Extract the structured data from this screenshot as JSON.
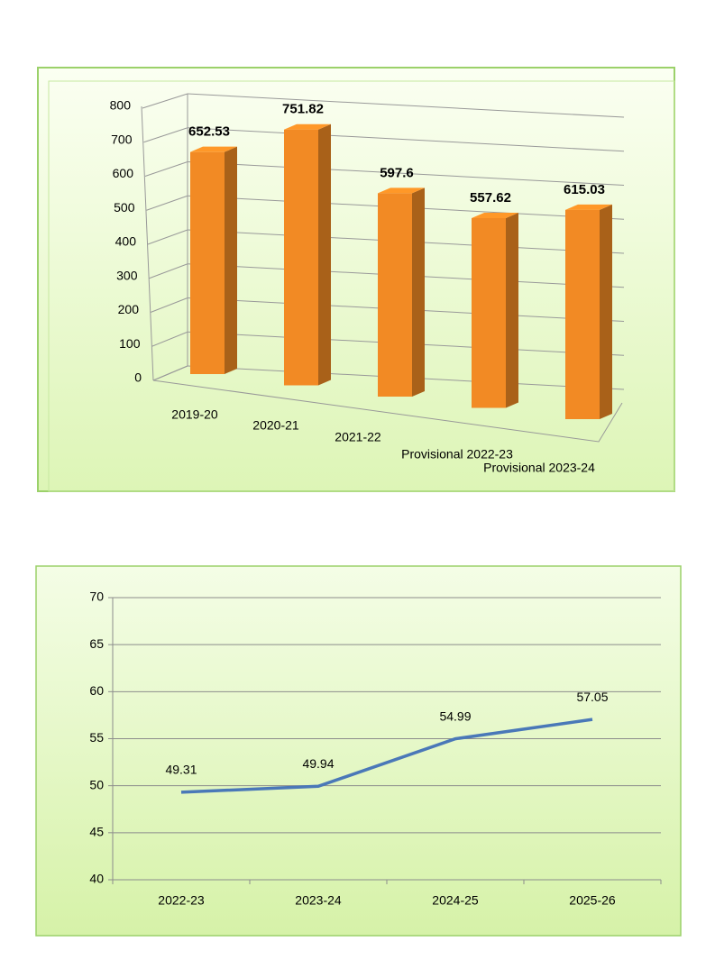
{
  "chart_data": [
    {
      "type": "bar3d",
      "categories": [
        "2019-20",
        "2020-21",
        "2021-22",
        "Provisional 2022-23",
        "Provisional 2023-24"
      ],
      "values": [
        652.53,
        751.82,
        597.6,
        557.62,
        615.03
      ],
      "color": "#f28a24",
      "ylim": [
        0,
        800
      ],
      "yticks": [
        0,
        100,
        200,
        300,
        400,
        500,
        600,
        700,
        800
      ],
      "grid": true
    },
    {
      "type": "line",
      "categories": [
        "2022-23",
        "2023-24",
        "2024-25",
        "2025-26"
      ],
      "values": [
        49.31,
        49.94,
        54.99,
        57.05
      ],
      "color": "#4a78b8",
      "ylim": [
        40,
        70
      ],
      "yticks": [
        40,
        45,
        50,
        55,
        60,
        65,
        70
      ],
      "grid": true
    }
  ]
}
